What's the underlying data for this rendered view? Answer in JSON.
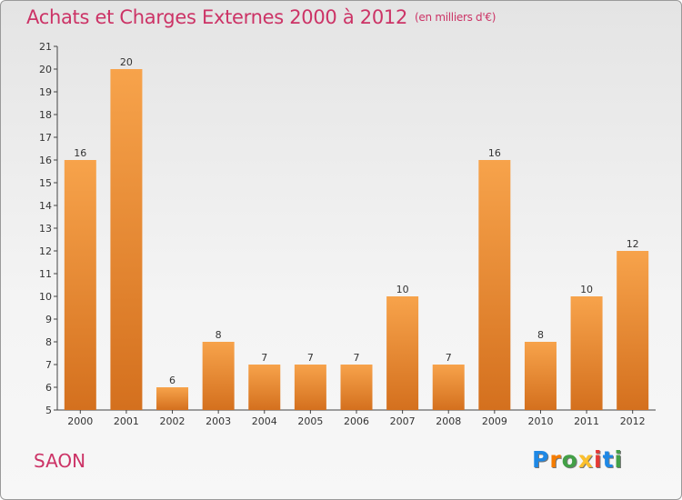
{
  "chart_data": {
    "type": "bar",
    "title": "Achats et Charges Externes 2000 à 2012",
    "subtitle": "(en milliers d'€)",
    "categories": [
      "2000",
      "2001",
      "2002",
      "2003",
      "2004",
      "2005",
      "2006",
      "2007",
      "2008",
      "2009",
      "2010",
      "2011",
      "2012"
    ],
    "values": [
      16,
      20,
      6,
      8,
      7,
      7,
      7,
      10,
      7,
      16,
      8,
      10,
      12
    ],
    "ylim": [
      5,
      21
    ],
    "yticks": [
      5,
      6,
      7,
      8,
      9,
      10,
      11,
      12,
      13,
      14,
      15,
      16,
      17,
      18,
      19,
      20,
      21
    ],
    "grid": false,
    "bar_color_top": "#f7a34b",
    "bar_color_bottom": "#d4701e"
  },
  "footer": {
    "place": "SAON",
    "logo_letters": [
      {
        "t": "P",
        "c": "#1e88e5"
      },
      {
        "t": "r",
        "c": "#f57c00"
      },
      {
        "t": "o",
        "c": "#43a047"
      },
      {
        "t": "x",
        "c": "#fbc02d"
      },
      {
        "t": "i",
        "c": "#e53935"
      },
      {
        "t": "t",
        "c": "#1e88e5"
      },
      {
        "t": "i",
        "c": "#43a047"
      }
    ]
  }
}
